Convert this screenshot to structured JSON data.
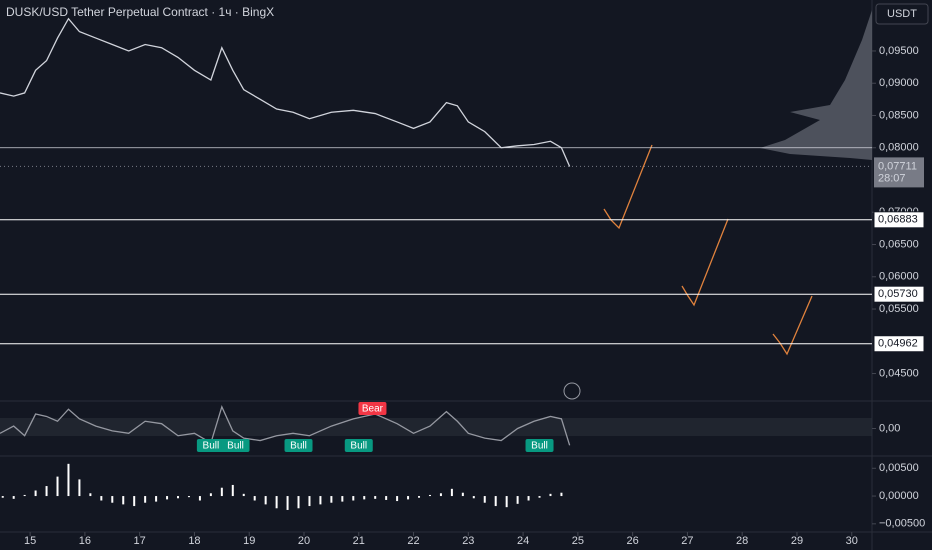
{
  "chart_data": [
    {
      "type": "line",
      "title": "DUSK/USD Tether Perpetual Contract · 1ч · BingX",
      "currency": "USDT",
      "x": [
        14.45,
        14.7,
        14.9,
        15.1,
        15.3,
        15.5,
        15.7,
        15.9,
        16.2,
        16.5,
        16.8,
        17.1,
        17.4,
        17.7,
        18.0,
        18.3,
        18.5,
        18.7,
        18.9,
        19.2,
        19.5,
        19.8,
        20.1,
        20.5,
        20.9,
        21.3,
        21.7,
        22.0,
        22.3,
        22.6,
        22.8,
        23.0,
        23.3,
        23.6,
        23.9,
        24.2,
        24.5,
        24.7,
        24.85
      ],
      "series": [
        {
          "color": "#d1d4dc",
          "values": [
            0.0885,
            0.088,
            0.0885,
            0.092,
            0.0935,
            0.097,
            0.1,
            0.098,
            0.097,
            0.096,
            0.095,
            0.096,
            0.0955,
            0.094,
            0.092,
            0.0905,
            0.0955,
            0.092,
            0.089,
            0.0875,
            0.086,
            0.0855,
            0.0845,
            0.0855,
            0.0858,
            0.0853,
            0.084,
            0.083,
            0.084,
            0.087,
            0.0865,
            0.084,
            0.0825,
            0.08,
            0.0803,
            0.0805,
            0.081,
            0.08,
            0.0771
          ]
        }
      ],
      "xlim": [
        14.45,
        30.37
      ],
      "ylim": [
        0.0409,
        0.1029
      ],
      "yticks": [
        {
          "value": 0.095,
          "label": "0,09500"
        },
        {
          "value": 0.09,
          "label": "0,09000"
        },
        {
          "value": 0.085,
          "label": "0,08500"
        },
        {
          "value": 0.08,
          "label": "0,08000"
        },
        {
          "value": 0.07,
          "label": "0,07000"
        },
        {
          "value": 0.065,
          "label": "0,06500"
        },
        {
          "value": 0.06,
          "label": "0,06000"
        },
        {
          "value": 0.055,
          "label": "0,05500"
        },
        {
          "value": 0.045,
          "label": "0,04500"
        }
      ],
      "horizontal_lines": [
        0.08
      ],
      "levels": [
        {
          "value": 0.06883,
          "label": "0,06883"
        },
        {
          "value": 0.0573,
          "label": "0,05730"
        },
        {
          "value": 0.04962,
          "label": "0,04962"
        }
      ],
      "last_price": {
        "value": 0.07711,
        "label": "0,07711"
      },
      "countdown": "28:07"
    },
    {
      "type": "line",
      "x": [
        14.45,
        14.7,
        14.9,
        15.1,
        15.3,
        15.5,
        15.7,
        15.9,
        16.2,
        16.5,
        16.8,
        17.1,
        17.4,
        17.7,
        18.0,
        18.3,
        18.5,
        18.7,
        18.9,
        19.2,
        19.5,
        19.8,
        20.1,
        20.5,
        20.9,
        21.3,
        21.7,
        22.0,
        22.3,
        22.6,
        22.8,
        23.0,
        23.3,
        23.6,
        23.9,
        24.2,
        24.5,
        24.7,
        24.85
      ],
      "series": [
        {
          "color": "#9598a1",
          "values": [
            -0.2,
            0.1,
            -0.3,
            0.6,
            0.5,
            0.3,
            0.8,
            0.4,
            0.1,
            -0.1,
            -0.2,
            0.3,
            0.2,
            -0.3,
            -0.2,
            -0.6,
            0.9,
            -0.1,
            -0.4,
            -0.5,
            -0.3,
            -0.2,
            -0.3,
            0.1,
            0.4,
            0.6,
            0.2,
            -0.2,
            0.1,
            0.7,
            0.3,
            -0.2,
            -0.4,
            -0.5,
            0.0,
            0.3,
            0.5,
            0.4,
            -0.7
          ]
        }
      ],
      "xlim": [
        14.45,
        30.37
      ],
      "ylim": [
        -1.1,
        1.1
      ],
      "yticks": [
        {
          "value": 0,
          "label": "0,00"
        }
      ],
      "annotations": [
        {
          "text": "Bull",
          "x": 18.3
        },
        {
          "text": "Bull",
          "x": 18.75
        },
        {
          "text": "Bull",
          "x": 19.9
        },
        {
          "text": "Bull",
          "x": 21.0
        },
        {
          "text": "Bear",
          "x": 21.25
        },
        {
          "text": "Bull",
          "x": 24.3
        }
      ]
    },
    {
      "type": "bar",
      "x": [
        14.5,
        14.7,
        14.9,
        15.1,
        15.3,
        15.5,
        15.7,
        15.9,
        16.1,
        16.3,
        16.5,
        16.7,
        16.9,
        17.1,
        17.3,
        17.5,
        17.7,
        17.9,
        18.1,
        18.3,
        18.5,
        18.7,
        18.9,
        19.1,
        19.3,
        19.5,
        19.7,
        19.9,
        20.1,
        20.3,
        20.5,
        20.7,
        20.9,
        21.1,
        21.3,
        21.5,
        21.7,
        21.9,
        22.1,
        22.3,
        22.5,
        22.7,
        22.9,
        23.1,
        23.3,
        23.5,
        23.7,
        23.9,
        24.1,
        24.3,
        24.5,
        24.7
      ],
      "values": [
        -0.0003,
        -0.0005,
        0.0002,
        0.001,
        0.0018,
        0.0035,
        0.0058,
        0.003,
        0.0005,
        -0.0008,
        -0.0012,
        -0.0015,
        -0.0018,
        -0.0012,
        -0.001,
        -0.0006,
        -0.0004,
        -0.0002,
        -0.0008,
        0.0005,
        0.0015,
        0.002,
        0.0004,
        -0.0008,
        -0.0015,
        -0.0022,
        -0.0025,
        -0.0022,
        -0.0018,
        -0.0015,
        -0.0012,
        -0.001,
        -0.0008,
        -0.0006,
        -0.0005,
        -0.0007,
        -0.0009,
        -0.0006,
        -0.0003,
        0.0002,
        0.0005,
        0.0013,
        0.0006,
        -0.0004,
        -0.0012,
        -0.0018,
        -0.002,
        -0.0014,
        -0.0008,
        -0.0003,
        0.0004,
        0.0006
      ],
      "color": "#ffffff",
      "xlim": [
        14.45,
        30.37
      ],
      "ylim": [
        -0.00611,
        0.00685
      ],
      "yticks": [
        {
          "value": 0.005,
          "label": "0,00500"
        },
        {
          "value": 0,
          "label": "0,00000"
        },
        {
          "value": -0.005,
          "label": "−0,00500"
        }
      ],
      "xticks": [
        15,
        16,
        17,
        18,
        19,
        20,
        21,
        22,
        23,
        24,
        25,
        26,
        27,
        28,
        29,
        30
      ]
    }
  ]
}
